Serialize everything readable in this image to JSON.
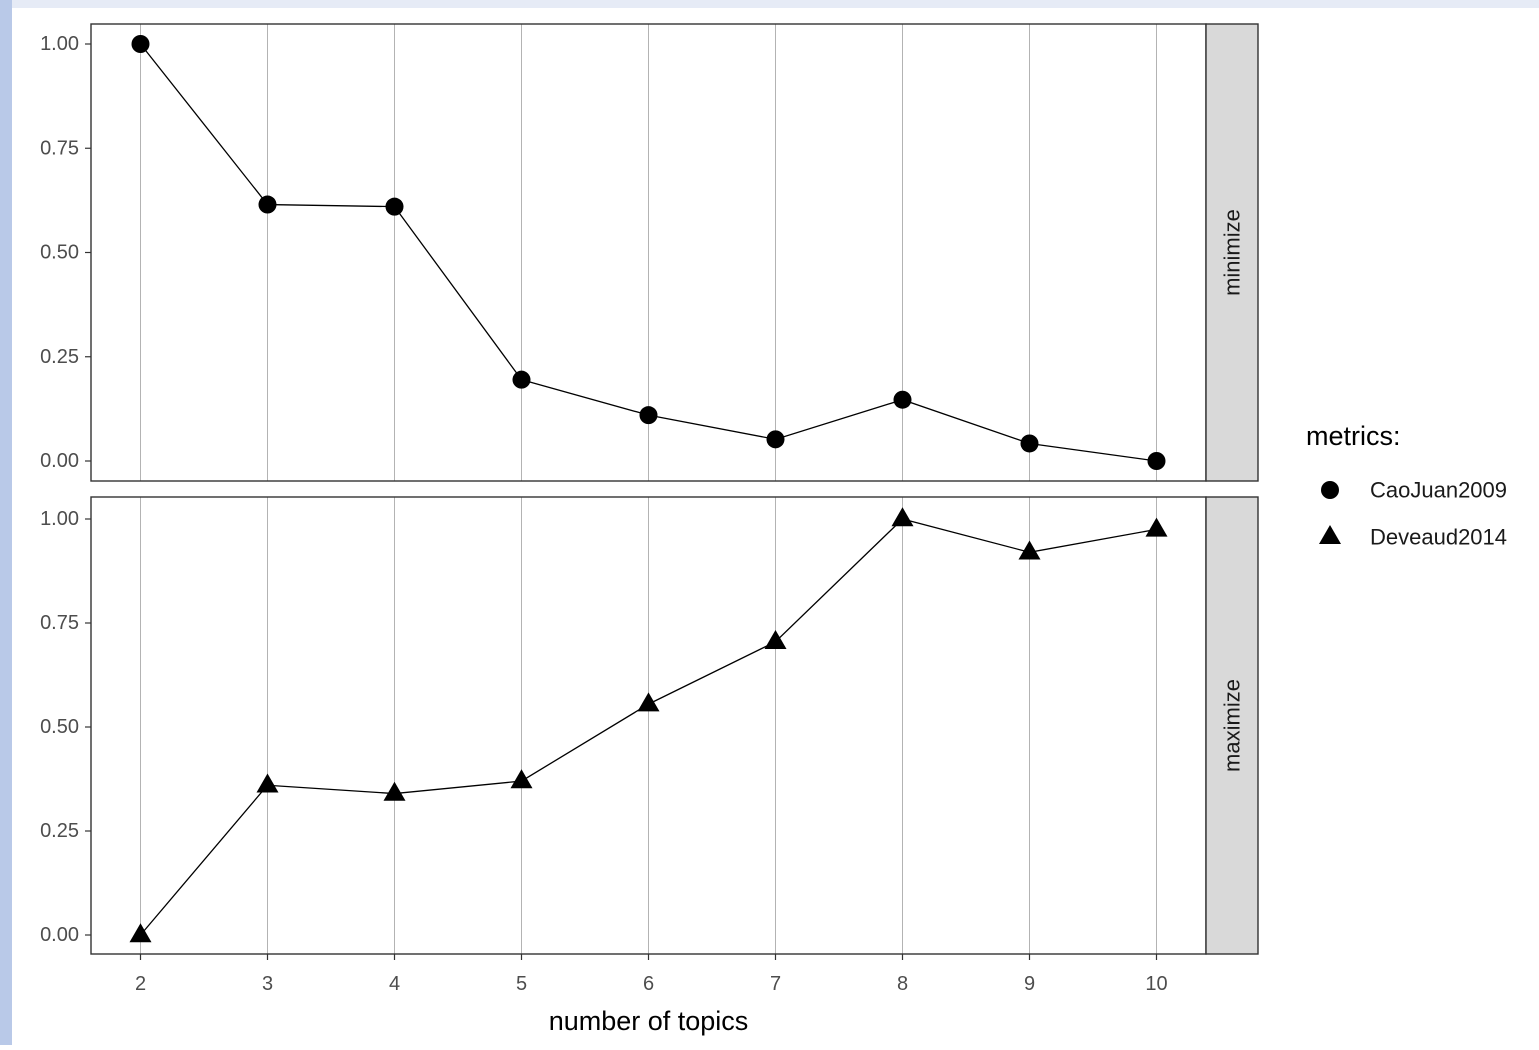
{
  "colors": {
    "window_bg_left": "#b9c9e8",
    "window_bg_top": "#e6ebf6",
    "panel_border": "#333333",
    "gridline": "#b3b3b3",
    "strip_fill": "#d9d9d9",
    "mark": "#000000",
    "axis_text": "#4d4d4d"
  },
  "chart_data": {
    "type": "line",
    "xlabel": "number of topics",
    "x": [
      2,
      3,
      4,
      5,
      6,
      7,
      8,
      9,
      10
    ],
    "x_ticks": [
      "2",
      "3",
      "4",
      "5",
      "6",
      "7",
      "8",
      "9",
      "10"
    ],
    "y_ticks": [
      "0.00",
      "0.25",
      "0.50",
      "0.75",
      "1.00"
    ],
    "ylim": [
      0,
      1
    ],
    "grid": "vertical major lines",
    "legend": {
      "title": "metrics:",
      "placement": "right",
      "entries": [
        {
          "label": "CaoJuan2009",
          "shape": "circle"
        },
        {
          "label": "Deveaud2014",
          "shape": "triangle"
        }
      ]
    },
    "panels": [
      {
        "strip": "minimize",
        "series": [
          {
            "name": "CaoJuan2009",
            "shape": "circle",
            "values": [
              1.0,
              0.615,
              0.61,
              0.195,
              0.11,
              0.052,
              0.147,
              0.042,
              0.0
            ]
          }
        ]
      },
      {
        "strip": "maximize",
        "series": [
          {
            "name": "Deveaud2014",
            "shape": "triangle",
            "values": [
              0.0,
              0.36,
              0.34,
              0.37,
              0.555,
              0.705,
              1.0,
              0.92,
              0.975
            ]
          }
        ]
      }
    ]
  }
}
